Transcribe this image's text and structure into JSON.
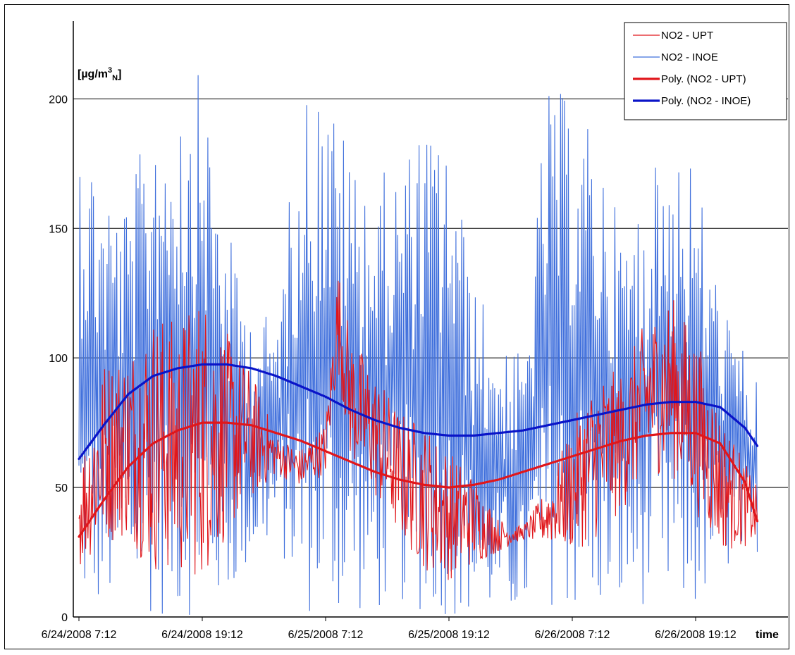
{
  "chart_data": {
    "type": "line",
    "unit_label": {
      "prefix": "[µg/m",
      "sup": "3",
      "sub": "N",
      "suffix": "]"
    },
    "xlabel": "time",
    "ylim": [
      0,
      230
    ],
    "yticks": [
      0,
      50,
      100,
      150,
      200
    ],
    "x_range_days": [
      0,
      2.75
    ],
    "x_start": "6/24/2008 7:12",
    "xticks": [
      {
        "label": "6/24/2008 7:12",
        "day": 0
      },
      {
        "label": "6/24/2008 19:12",
        "day": 0.5
      },
      {
        "label": "6/25/2008 7:12",
        "day": 1.0
      },
      {
        "label": "6/25/2008 19:12",
        "day": 1.5
      },
      {
        "label": "6/26/2008 7:12",
        "day": 2.0
      },
      {
        "label": "6/26/2008 19:12",
        "day": 2.5
      }
    ],
    "grid": true,
    "legend_position": "top-right",
    "series": [
      {
        "name": "NO2 - UPT",
        "color": "#e0161b",
        "style": "thin",
        "envelope": {
          "day": [
            0,
            0.1,
            0.2,
            0.3,
            0.4,
            0.5,
            0.6,
            0.7,
            0.8,
            0.9,
            1.0,
            1.05,
            1.1,
            1.2,
            1.3,
            1.4,
            1.5,
            1.6,
            1.7,
            1.8,
            1.9,
            2.0,
            2.1,
            2.2,
            2.3,
            2.4,
            2.5,
            2.6,
            2.75
          ],
          "low": [
            18,
            28,
            30,
            16,
            15,
            14,
            30,
            45,
            55,
            50,
            55,
            95,
            60,
            45,
            30,
            18,
            14,
            20,
            25,
            30,
            28,
            25,
            30,
            40,
            55,
            55,
            40,
            25,
            28
          ],
          "high": [
            60,
            100,
            105,
            120,
            115,
            128,
            110,
            95,
            70,
            65,
            75,
            136,
            110,
            95,
            80,
            75,
            65,
            55,
            38,
            35,
            50,
            75,
            95,
            95,
            115,
            125,
            110,
            80,
            50
          ]
        }
      },
      {
        "name": "NO2 - INOE",
        "color": "#3f6fdc",
        "style": "thin",
        "envelope": {
          "day": [
            0,
            0.1,
            0.2,
            0.3,
            0.4,
            0.5,
            0.6,
            0.7,
            0.8,
            0.9,
            1.0,
            1.1,
            1.2,
            1.3,
            1.4,
            1.5,
            1.6,
            1.7,
            1.8,
            1.9,
            2.0,
            2.1,
            2.2,
            2.3,
            2.4,
            2.5,
            2.6,
            2.75
          ],
          "low": [
            0,
            0,
            5,
            0,
            0,
            0,
            5,
            20,
            30,
            0,
            0,
            0,
            0,
            5,
            0,
            0,
            0,
            0,
            0,
            5,
            0,
            0,
            0,
            5,
            0,
            0,
            15,
            25
          ],
          "high": [
            198,
            170,
            160,
            200,
            208,
            210,
            150,
            120,
            115,
            205,
            207,
            180,
            170,
            175,
            190,
            185,
            130,
            110,
            100,
            205,
            200,
            185,
            150,
            165,
            190,
            175,
            125,
            90
          ]
        }
      },
      {
        "name": "Poly. (NO2 - UPT)",
        "color": "#e0161b",
        "style": "thick",
        "x_day": [
          0,
          0.1,
          0.2,
          0.3,
          0.4,
          0.5,
          0.6,
          0.7,
          0.8,
          0.9,
          1.0,
          1.1,
          1.2,
          1.3,
          1.4,
          1.5,
          1.6,
          1.7,
          1.8,
          1.9,
          2.0,
          2.1,
          2.2,
          2.3,
          2.4,
          2.5,
          2.6,
          2.7,
          2.75
        ],
        "values": [
          31,
          45,
          58,
          67,
          72,
          75,
          75,
          74,
          71,
          68,
          64,
          60,
          56,
          53,
          51,
          50,
          51,
          53,
          56,
          59,
          62,
          65,
          68,
          70,
          71,
          71,
          67,
          52,
          37
        ]
      },
      {
        "name": "Poly. (NO2 - INOE)",
        "color": "#0a14c8",
        "style": "thick",
        "x_day": [
          0,
          0.1,
          0.2,
          0.3,
          0.4,
          0.5,
          0.6,
          0.7,
          0.8,
          0.9,
          1.0,
          1.1,
          1.2,
          1.3,
          1.4,
          1.5,
          1.6,
          1.7,
          1.8,
          1.9,
          2.0,
          2.1,
          2.2,
          2.3,
          2.4,
          2.5,
          2.6,
          2.7,
          2.75
        ],
        "values": [
          61,
          74,
          86,
          93,
          96,
          97.5,
          97.5,
          96,
          93,
          89,
          85,
          80,
          76,
          73,
          71,
          70,
          70,
          71,
          72,
          74,
          76,
          78,
          80,
          82,
          83,
          83,
          81,
          73,
          66
        ]
      }
    ]
  }
}
